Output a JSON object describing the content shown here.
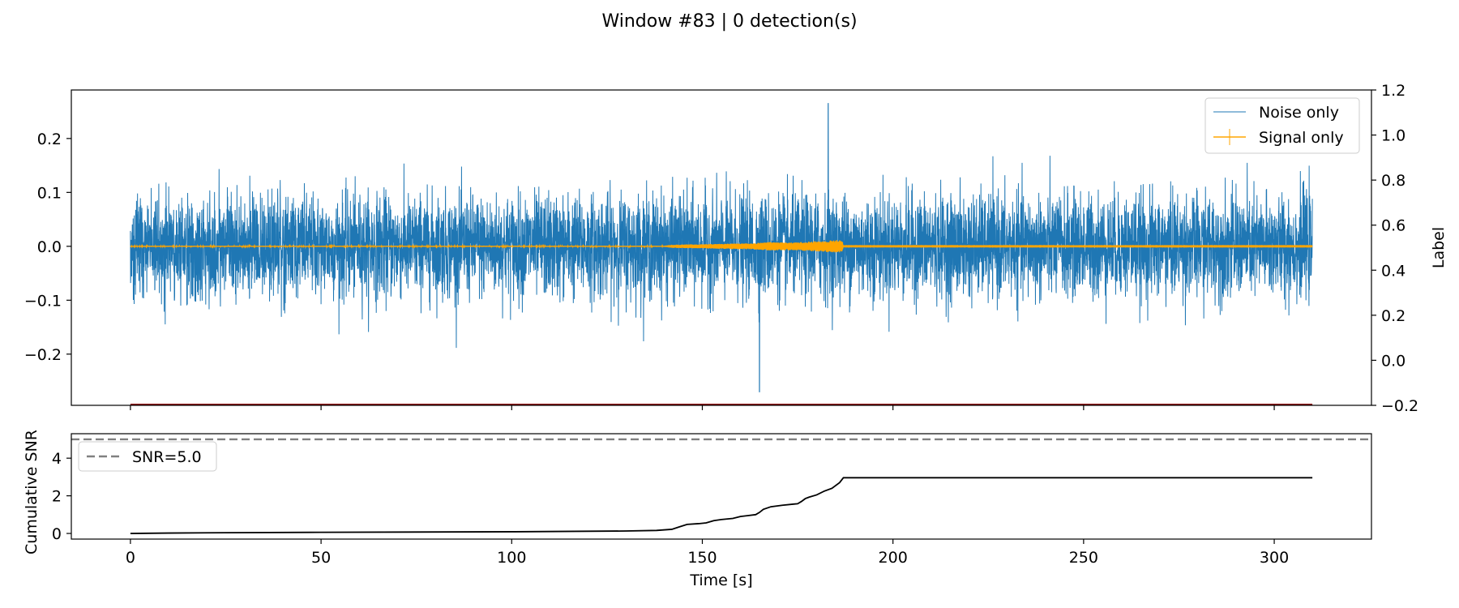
{
  "figure": {
    "title": "Window #83 | 0 detection(s)"
  },
  "chart_data": [
    {
      "type": "line",
      "panel": "top",
      "ylim": [
        -0.295,
        0.29
      ],
      "y2lim": [
        -0.2,
        1.2
      ],
      "xlim": [
        -15.5,
        325.5
      ],
      "x_range": [
        0,
        310
      ],
      "yticks": [
        -0.2,
        -0.1,
        0.0,
        0.1,
        0.2
      ],
      "ytick_labels": [
        "−0.2",
        "−0.1",
        "0.0",
        "0.1",
        "0.2"
      ],
      "y2ticks": [
        -0.2,
        0.0,
        0.2,
        0.4,
        0.6,
        0.8,
        1.0,
        1.2
      ],
      "y2tick_labels": [
        "−0.2",
        "0.0",
        "0.2",
        "0.4",
        "0.6",
        "0.8",
        "1.0",
        "1.2"
      ],
      "y2label": "Label",
      "grid": false,
      "legend_loc": "upper right",
      "series": [
        {
          "name": "Noise only",
          "color": "#1f77b4",
          "axis": "left",
          "envelope_summary": {
            "typical_peak_abs": 0.15,
            "max": 0.265,
            "min": -0.27,
            "max_at_s": 183,
            "min_at_s": 165
          }
        },
        {
          "name": "Signal only",
          "color": "#ffa500",
          "axis": "left",
          "amplitude_envelope": [
            [
              0,
              0.001
            ],
            [
              140,
              0.001
            ],
            [
              142,
              0.003
            ],
            [
              150,
              0.004
            ],
            [
              157,
              0.005
            ],
            [
              164,
              0.006
            ],
            [
              168,
              0.008
            ],
            [
              174,
              0.007
            ],
            [
              178,
              0.009
            ],
            [
              182,
              0.01
            ],
            [
              185,
              0.012
            ],
            [
              186.7,
              0.011
            ],
            [
              187,
              0.0005
            ],
            [
              310,
              0.0005
            ]
          ]
        },
        {
          "name": "",
          "color": "#8b0000",
          "axis": "right",
          "values": [
            [
              0,
              -0.2
            ],
            [
              310,
              -0.2
            ]
          ]
        }
      ]
    },
    {
      "type": "line",
      "panel": "bottom",
      "ylabel": "Cumulative SNR",
      "xlabel": "Time [s]",
      "xlim": [
        -15.5,
        325.5
      ],
      "ylim": [
        -0.3,
        5.3
      ],
      "xticks": [
        0,
        50,
        100,
        150,
        200,
        250,
        300
      ],
      "xtick_labels": [
        "0",
        "50",
        "100",
        "150",
        "200",
        "250",
        "300"
      ],
      "yticks": [
        0,
        2,
        4
      ],
      "ytick_labels": [
        "0",
        "2",
        "4"
      ],
      "grid": false,
      "legend_loc": "upper left",
      "threshold": {
        "name": "SNR=5.0",
        "value": 5.0,
        "color": "#808080"
      },
      "series": [
        {
          "name": "",
          "color": "#000000",
          "points": [
            [
              0,
              0.0
            ],
            [
              10,
              0.02
            ],
            [
              25,
              0.04
            ],
            [
              50,
              0.06
            ],
            [
              100,
              0.09
            ],
            [
              130,
              0.13
            ],
            [
              138,
              0.16
            ],
            [
              142,
              0.22
            ],
            [
              144,
              0.35
            ],
            [
              146,
              0.48
            ],
            [
              149,
              0.52
            ],
            [
              151,
              0.56
            ],
            [
              153,
              0.68
            ],
            [
              155,
              0.74
            ],
            [
              158,
              0.8
            ],
            [
              160,
              0.9
            ],
            [
              162,
              0.95
            ],
            [
              164,
              1.0
            ],
            [
              165,
              1.12
            ],
            [
              166,
              1.28
            ],
            [
              168,
              1.42
            ],
            [
              171,
              1.5
            ],
            [
              174,
              1.56
            ],
            [
              175,
              1.58
            ],
            [
              176,
              1.7
            ],
            [
              177,
              1.85
            ],
            [
              178,
              1.93
            ],
            [
              180,
              2.05
            ],
            [
              182,
              2.25
            ],
            [
              184,
              2.4
            ],
            [
              186,
              2.7
            ],
            [
              187,
              2.96
            ],
            [
              200,
              2.96
            ],
            [
              250,
              2.96
            ],
            [
              310,
              2.96
            ]
          ]
        }
      ]
    }
  ]
}
